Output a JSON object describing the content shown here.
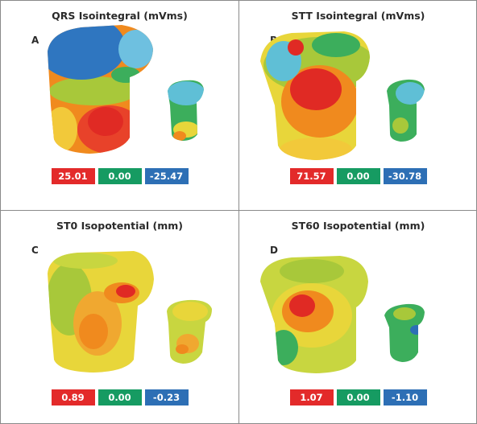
{
  "panels": [
    {
      "letter": "A",
      "title": "QRS Isointegral (mVms)",
      "values": {
        "max": "25.01",
        "zero": "0.00",
        "min": "-25.47"
      }
    },
    {
      "letter": "B",
      "title": "STT Isointegral (mVms)",
      "values": {
        "max": "71.57",
        "zero": "0.00",
        "min": "-30.78"
      }
    },
    {
      "letter": "C",
      "title": "ST0 Isopotential (mm)",
      "values": {
        "max": "0.89",
        "zero": "0.00",
        "min": "-0.23"
      }
    },
    {
      "letter": "D",
      "title": "ST60 Isopotential (mm)",
      "values": {
        "max": "1.07",
        "zero": "0.00",
        "min": "-1.10"
      }
    }
  ],
  "colors": {
    "max": "#e32a2a",
    "zero": "#169b62",
    "min": "#2d6fb5",
    "border": "#8a8a8a"
  }
}
